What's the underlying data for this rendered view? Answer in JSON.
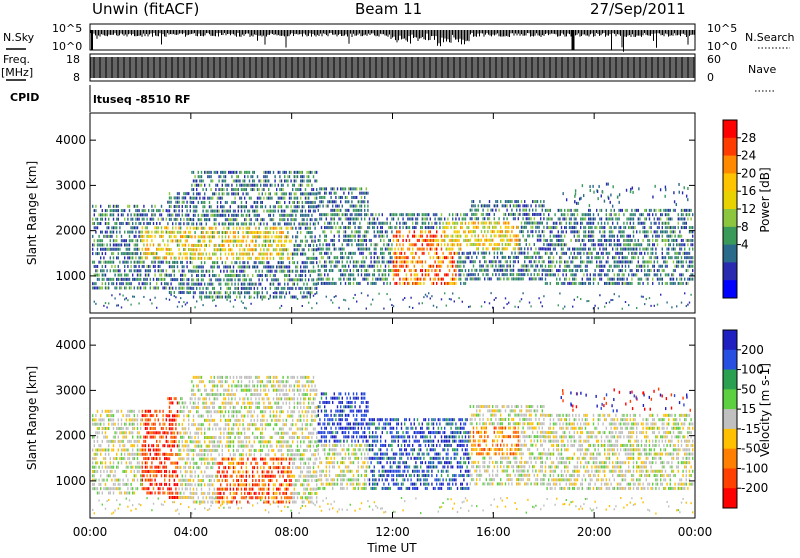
{
  "header": {
    "station": "Unwin (fitACF)",
    "beam": "Beam 11",
    "date": "27/Sep/2011"
  },
  "side_labels": {
    "nsky": "N.Sky",
    "freq_line1": "Freq.",
    "freq_line2": "[MHz]",
    "cpid": "CPID",
    "nsearch": "N.Search",
    "nave": "Nave"
  },
  "cpid_text": "ltuseq -8510 RF",
  "chart_data": [
    {
      "type": "line",
      "panel": "noise",
      "y_ticks_left": [
        "10^5",
        "10^0"
      ],
      "y_ticks_right": [
        "10^5",
        "10^0"
      ]
    },
    {
      "type": "line",
      "panel": "frequency",
      "y_ticks_left": [
        "18",
        "8"
      ],
      "y_ticks_right": [
        "60",
        "0"
      ]
    },
    {
      "type": "heatmap",
      "panel": "power",
      "ylabel": "Slant Range [km]",
      "colorbar_label": "Power [dB]",
      "ylim": [
        180,
        4600
      ],
      "y_ticks": [
        1000,
        2000,
        3000,
        4000
      ],
      "colorbar_ticks": [
        "28",
        "24",
        "20",
        "16",
        "12",
        "8",
        "4"
      ],
      "colorbar_colors": [
        "#ff0000",
        "#ff3c00",
        "#ff8a00",
        "#ffc400",
        "#e8d200",
        "#8cc63f",
        "#3a9a5a",
        "#2a6a8a",
        "#2a2ab0",
        "#0000ff"
      ]
    },
    {
      "type": "heatmap",
      "panel": "velocity",
      "ylabel": "Slant Range [km]",
      "colorbar_label": "Velocity [m s-1]",
      "ylim": [
        180,
        4600
      ],
      "y_ticks": [
        1000,
        2000,
        3000,
        4000
      ],
      "colorbar_ticks": [
        "200",
        "100",
        "50",
        "15",
        "-15",
        "-50",
        "-100",
        "-200"
      ],
      "colorbar_colors": [
        "#2020c0",
        "#2850e0",
        "#2aa050",
        "#5cd040",
        "#c0c0c0",
        "#ffc000",
        "#ff8000",
        "#ff4000",
        "#ff0000"
      ]
    }
  ],
  "x_axis": {
    "label": "Time UT",
    "ticks": [
      "00:00",
      "04:00",
      "08:00",
      "12:00",
      "16:00",
      "20:00",
      "00:00"
    ]
  }
}
